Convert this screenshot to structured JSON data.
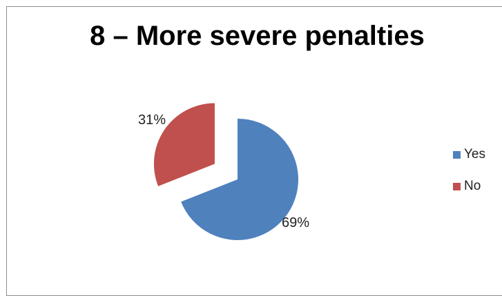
{
  "chart_data": {
    "type": "pie",
    "title": "8 – More severe penalties",
    "categories": [
      "Yes",
      "No"
    ],
    "values": [
      69,
      31
    ],
    "value_labels": [
      "69%",
      "31%"
    ],
    "colors": [
      "#4f81bd",
      "#c0504d"
    ],
    "exploded": "No",
    "legend_position": "right"
  }
}
